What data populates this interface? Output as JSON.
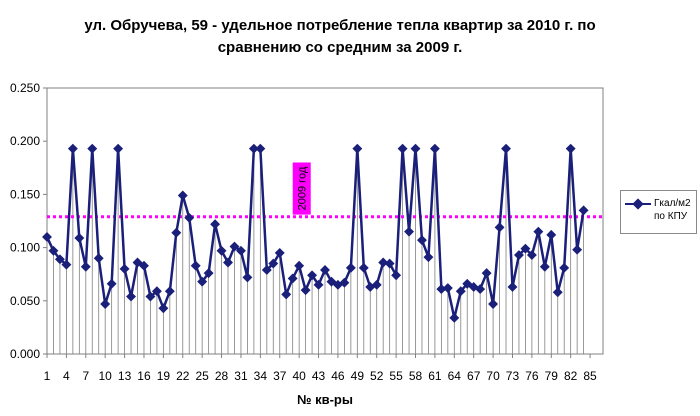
{
  "title": {
    "line1": "ул. Обручева, 59  - удельное потребление тепла квартир за 2010 г. по",
    "line2": "сравнению со средним за  2009 г."
  },
  "annotation": "2009 год",
  "colors": {
    "series": "#1a1f7a",
    "reference": "#ff00ff",
    "annotation_bg": "#ff00ff",
    "droplines": "#808080"
  },
  "legend": {
    "line1": "Гкал/м2",
    "line2": "по КПУ"
  },
  "chart_data": {
    "type": "line",
    "title": "ул. Обручева, 59  - удельное потребление тепла квартир за 2010 г. по сравнению со средним за  2009 г.",
    "xlabel": "№ кв-ры",
    "ylabel": "",
    "ylim": [
      0,
      0.25
    ],
    "y_ticks": [
      "0.000",
      "0.050",
      "0.100",
      "0.150",
      "0.200",
      "0.250"
    ],
    "x_ticks": [
      "1",
      "4",
      "7",
      "10",
      "13",
      "16",
      "19",
      "22",
      "25",
      "28",
      "31",
      "34",
      "37",
      "40",
      "43",
      "46",
      "49",
      "52",
      "55",
      "58",
      "61",
      "64",
      "67",
      "70",
      "73",
      "76",
      "79",
      "82",
      "85"
    ],
    "x_range": [
      1,
      87
    ],
    "reference_line": {
      "value": 0.129,
      "label": "2009 год"
    },
    "drop_lines": true,
    "legend_position": "right",
    "series": [
      {
        "name": "Гкал/м2 по КПУ",
        "x": [
          1,
          2,
          3,
          4,
          5,
          6,
          7,
          8,
          9,
          10,
          11,
          12,
          13,
          14,
          15,
          16,
          17,
          18,
          19,
          20,
          21,
          22,
          23,
          24,
          25,
          26,
          27,
          28,
          29,
          30,
          31,
          32,
          33,
          34,
          35,
          36,
          37,
          38,
          39,
          40,
          41,
          42,
          43,
          44,
          45,
          46,
          47,
          48,
          49,
          50,
          51,
          52,
          53,
          54,
          55,
          56,
          57,
          58,
          59,
          60,
          61,
          62,
          63,
          64,
          65,
          66,
          67,
          68,
          69,
          70,
          71,
          72,
          73,
          74,
          75,
          76,
          77,
          78,
          79,
          80,
          81,
          82,
          83,
          84
        ],
        "values": [
          0.11,
          0.097,
          0.089,
          0.084,
          0.193,
          0.109,
          0.082,
          0.193,
          0.09,
          0.047,
          0.066,
          0.193,
          0.08,
          0.054,
          0.086,
          0.083,
          0.054,
          0.059,
          0.043,
          0.059,
          0.114,
          0.149,
          0.128,
          0.083,
          0.068,
          0.076,
          0.122,
          0.097,
          0.086,
          0.101,
          0.097,
          0.072,
          0.193,
          0.193,
          0.079,
          0.085,
          0.095,
          0.056,
          0.071,
          0.083,
          0.06,
          0.074,
          0.065,
          0.079,
          0.068,
          0.065,
          0.067,
          0.081,
          0.193,
          0.081,
          0.063,
          0.065,
          0.086,
          0.085,
          0.074,
          0.193,
          0.115,
          0.193,
          0.107,
          0.091,
          0.193,
          0.061,
          0.062,
          0.034,
          0.059,
          0.066,
          0.063,
          0.061,
          0.076,
          0.047,
          0.119,
          0.193,
          0.063,
          0.093,
          0.099,
          0.093,
          0.115,
          0.082,
          0.112,
          0.058,
          0.081,
          0.193,
          0.098,
          0.135
        ]
      }
    ]
  }
}
